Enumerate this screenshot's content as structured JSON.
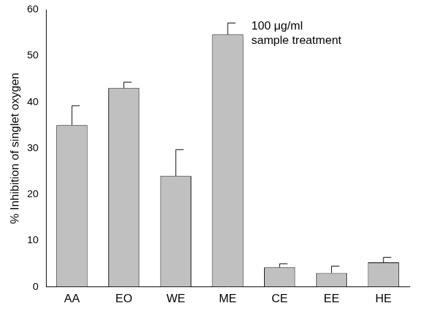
{
  "chart_data": {
    "type": "bar",
    "y_label": "% Inhibition of singlet oxygen",
    "annotation": [
      "100 μg/ml",
      "sample treatment"
    ],
    "categories": [
      "AA",
      "EO",
      "WE",
      "ME",
      "CE",
      "EE",
      "HE"
    ],
    "values": [
      35,
      43,
      24,
      54.6,
      4.2,
      3,
      5.3
    ],
    "errors": [
      4.2,
      1.3,
      5.7,
      2.5,
      0.8,
      1.5,
      1.1
    ],
    "color": "#c0c0c0",
    "ylim": [
      0,
      60
    ],
    "yticks": [
      0,
      10,
      20,
      30,
      40,
      50,
      60
    ],
    "grid": false
  }
}
